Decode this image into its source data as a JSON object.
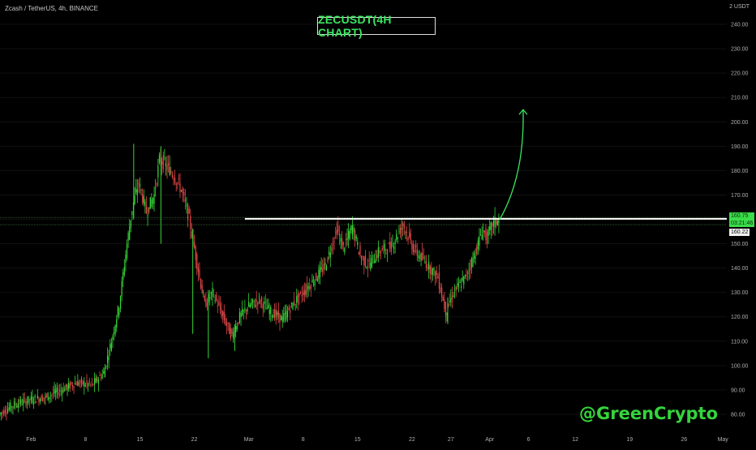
{
  "header": {
    "symbol_info": "Zcash / TetherUS, 4h, BINANCE",
    "title": "ZECUSDT(4H CHART)",
    "axis_unit": "2 USDT"
  },
  "watermark": "@GreenCrypto",
  "colors": {
    "background": "#000000",
    "up_candle": "#39d83a",
    "down_candle": "#e04848",
    "resistance": "#ffffff",
    "arrow": "#39e75f",
    "axis_text": "#b0b0b0"
  },
  "chart_data": {
    "type": "candlestick",
    "instrument": "ZECUSDT",
    "interval": "4h",
    "y_axis": {
      "ticks": [
        80,
        90,
        100,
        110,
        120,
        130,
        140,
        150,
        160,
        170,
        180,
        190,
        200,
        210,
        220,
        230,
        240
      ],
      "tick_labels": [
        "80.00",
        "90.00",
        "100.00",
        "110.00",
        "120.00",
        "130.00",
        "140.00",
        "150.00",
        "160.00",
        "170.00",
        "180.00",
        "190.00",
        "200.00",
        "210.00",
        "220.00",
        "230.00",
        "240.00"
      ],
      "ylim": [
        72,
        250
      ]
    },
    "x_axis": {
      "labels": [
        {
          "label": "Feb",
          "day": 1
        },
        {
          "label": "8",
          "day": 8
        },
        {
          "label": "15",
          "day": 15
        },
        {
          "label": "22",
          "day": 22
        },
        {
          "label": "Mar",
          "day": 29
        },
        {
          "label": "8",
          "day": 36
        },
        {
          "label": "15",
          "day": 43
        },
        {
          "label": "22",
          "day": 50
        },
        {
          "label": "27",
          "day": 55
        },
        {
          "label": "Apr",
          "day": 60
        },
        {
          "label": "6",
          "day": 65
        },
        {
          "label": "12",
          "day": 71
        },
        {
          "label": "19",
          "day": 78
        },
        {
          "label": "26",
          "day": 85
        },
        {
          "label": "May",
          "day": 90
        }
      ],
      "xlim": [
        -3,
        90.5
      ]
    },
    "price_path": [
      [
        -3,
        80
      ],
      [
        -1,
        84
      ],
      [
        1,
        86
      ],
      [
        3,
        87
      ],
      [
        5,
        90
      ],
      [
        7,
        93
      ],
      [
        9,
        92
      ],
      [
        10.5,
        97
      ],
      [
        11.5,
        110
      ],
      [
        12.5,
        125
      ],
      [
        13.5,
        150
      ],
      [
        14.2,
        165
      ],
      [
        15,
        175
      ],
      [
        16,
        163
      ],
      [
        17,
        170
      ],
      [
        17.7,
        185
      ],
      [
        18.5,
        182
      ],
      [
        19.5,
        178
      ],
      [
        20.5,
        172
      ],
      [
        21.5,
        160
      ],
      [
        22.5,
        142
      ],
      [
        23.5,
        125
      ],
      [
        24.5,
        130
      ],
      [
        26,
        119
      ],
      [
        27,
        112
      ],
      [
        28,
        120
      ],
      [
        29,
        124
      ],
      [
        30.5,
        127
      ],
      [
        32,
        122
      ],
      [
        33.5,
        119
      ],
      [
        35,
        126
      ],
      [
        37,
        133
      ],
      [
        39,
        141
      ],
      [
        40.5,
        156
      ],
      [
        41.3,
        148
      ],
      [
        42.5,
        157
      ],
      [
        43.5,
        145
      ],
      [
        44.5,
        141
      ],
      [
        46,
        147
      ],
      [
        47.5,
        149
      ],
      [
        49,
        158
      ],
      [
        50.5,
        147
      ],
      [
        52,
        142
      ],
      [
        53.5,
        136
      ],
      [
        54.5,
        122
      ],
      [
        55.5,
        130
      ],
      [
        57,
        136
      ],
      [
        58.5,
        148
      ],
      [
        59.2,
        156
      ],
      [
        59.8,
        152
      ],
      [
        60.5,
        158
      ],
      [
        61.3,
        160
      ]
    ],
    "spikes": [
      {
        "day": 14.2,
        "high": 191,
        "low": 160
      },
      {
        "day": 17.7,
        "high": 190,
        "low": 150
      },
      {
        "day": 21.8,
        "high": 156,
        "low": 113
      },
      {
        "day": 23.8,
        "high": 131,
        "low": 103
      },
      {
        "day": 27.2,
        "high": 117,
        "low": 106
      },
      {
        "day": 54.6,
        "high": 128,
        "low": 117
      }
    ],
    "resistance_level": {
      "price": 160.2,
      "from_day": 28.5,
      "to_day": 90.5
    },
    "reference_lines": [
      160.75,
      157.8
    ],
    "projection_arrow": {
      "from": [
        61.3,
        160
      ],
      "via": [
        64.5,
        178
      ],
      "to": [
        64.3,
        205
      ]
    },
    "price_labels": {
      "current": "160.75",
      "countdown": "03:21:46",
      "reference": "160.22"
    }
  }
}
